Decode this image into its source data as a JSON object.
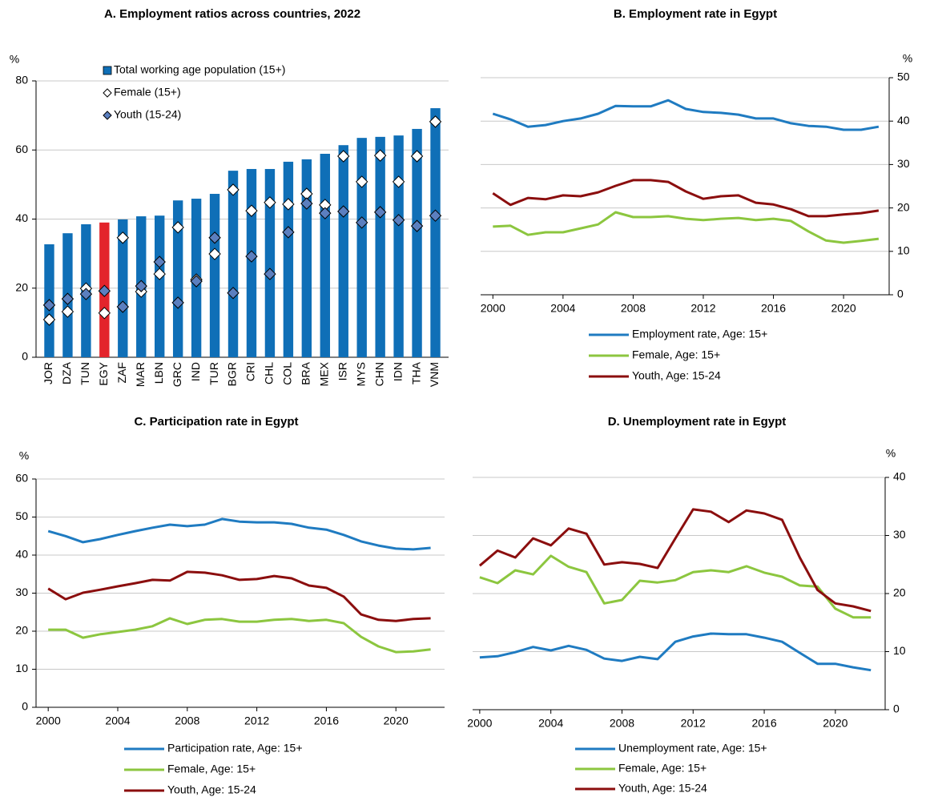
{
  "chart_data": [
    {
      "type": "bar",
      "title": "A. Employment ratios across countries, 2022",
      "y_unit": "%",
      "categories": [
        "JOR",
        "DZA",
        "TUN",
        "EGY",
        "ZAF",
        "MAR",
        "LBN",
        "GRC",
        "IND",
        "TUR",
        "BGR",
        "CRI",
        "CHL",
        "COL",
        "BRA",
        "MEX",
        "ISR",
        "MYS",
        "CHN",
        "IDN",
        "THA",
        "VNM"
      ],
      "series": [
        {
          "name": "Total working age population (15+)",
          "style": "bar",
          "color": "#0f6fb7",
          "colors": [
            "#0f6fb7",
            "#0f6fb7",
            "#0f6fb7",
            "#e3242b",
            "#0f6fb7",
            "#0f6fb7",
            "#0f6fb7",
            "#0f6fb7",
            "#0f6fb7",
            "#0f6fb7",
            "#0f6fb7",
            "#0f6fb7",
            "#0f6fb7",
            "#0f6fb7",
            "#0f6fb7",
            "#0f6fb7",
            "#0f6fb7",
            "#0f6fb7",
            "#0f6fb7",
            "#0f6fb7",
            "#0f6fb7",
            "#0f6fb7"
          ],
          "values": [
            32.7,
            35.9,
            38.5,
            39,
            39.9,
            40.8,
            41,
            45.4,
            45.9,
            47.3,
            54,
            54.5,
            54.5,
            56.6,
            57.3,
            58.9,
            61.4,
            63.5,
            63.8,
            64.2,
            66.1,
            72.1
          ]
        },
        {
          "name": "Female (15+)",
          "style": "diamond",
          "color": "#ffffff",
          "values": [
            10.9,
            13.2,
            19.9,
            12.8,
            34.6,
            19,
            24.1,
            37.6,
            22.5,
            29.9,
            48.5,
            42.4,
            44.8,
            44.3,
            47.3,
            44.1,
            58.2,
            50.8,
            58.4,
            50.8,
            58.2,
            68.2
          ]
        },
        {
          "name": "Youth (15-24)",
          "style": "diamond",
          "color": "#5b7fbf",
          "values": [
            15.1,
            16.9,
            18.3,
            19.2,
            14.6,
            20.6,
            27.6,
            15.8,
            22,
            34.6,
            18.6,
            29.2,
            24.1,
            36.2,
            44.5,
            41.7,
            42.2,
            39,
            42,
            39.7,
            38,
            41
          ]
        }
      ],
      "ylim": [
        0,
        80
      ],
      "yticks": [
        0,
        20,
        40,
        60,
        80
      ],
      "grid": true,
      "y_axis_side": "left",
      "legend_position": "top-left"
    },
    {
      "type": "line",
      "title": "B. Employment rate in Egypt",
      "y_unit": "%",
      "x": [
        2000,
        2001,
        2002,
        2003,
        2004,
        2005,
        2006,
        2007,
        2008,
        2009,
        2010,
        2011,
        2012,
        2013,
        2014,
        2015,
        2016,
        2017,
        2018,
        2019,
        2020,
        2021,
        2022
      ],
      "series": [
        {
          "name": "Employment rate, Age: 15+",
          "color": "#1f7bc1",
          "values": [
            41.7,
            40.4,
            38.7,
            39.1,
            40,
            40.6,
            41.7,
            43.5,
            43.4,
            43.4,
            44.8,
            42.8,
            42.1,
            41.9,
            41.5,
            40.6,
            40.6,
            39.5,
            38.9,
            38.7,
            38,
            38,
            38.7
          ]
        },
        {
          "name": "Female, Age: 15+",
          "color": "#8cc63f",
          "values": [
            15.7,
            15.9,
            13.8,
            14.4,
            14.4,
            15.3,
            16.2,
            19,
            17.9,
            17.9,
            18.1,
            17.5,
            17.2,
            17.5,
            17.7,
            17.2,
            17.5,
            17,
            14.6,
            12.5,
            12,
            12.4,
            12.9
          ]
        },
        {
          "name": "Youth, Age: 15-24",
          "color": "#8b0e0e",
          "values": [
            23.4,
            20.7,
            22.3,
            22,
            22.9,
            22.7,
            23.6,
            25.1,
            26.4,
            26.4,
            26,
            23.8,
            22.1,
            22.7,
            22.9,
            21.2,
            20.8,
            19.7,
            18.1,
            18.1,
            18.5,
            18.8,
            19.4
          ]
        }
      ],
      "xlim": [
        1999.3,
        2022.6
      ],
      "xticks": [
        2000,
        2004,
        2008,
        2012,
        2016,
        2020
      ],
      "ylim": [
        0,
        50
      ],
      "yticks": [
        0,
        10,
        20,
        30,
        40,
        50
      ],
      "grid": true,
      "y_axis_side": "right",
      "legend_position": "bottom"
    },
    {
      "type": "line",
      "title": "C. Participation rate in Egypt",
      "y_unit": "%",
      "x": [
        2000,
        2001,
        2002,
        2003,
        2004,
        2005,
        2006,
        2007,
        2008,
        2009,
        2010,
        2011,
        2012,
        2013,
        2014,
        2015,
        2016,
        2017,
        2018,
        2019,
        2020,
        2021,
        2022
      ],
      "series": [
        {
          "name": "Participation rate, Age: 15+",
          "color": "#1f7bc1",
          "values": [
            46.3,
            45,
            43.4,
            44.2,
            45.3,
            46.3,
            47.2,
            48,
            47.6,
            48,
            49.5,
            48.8,
            48.6,
            48.6,
            48.2,
            47.2,
            46.7,
            45.3,
            43.6,
            42.5,
            41.7,
            41.5,
            41.9
          ]
        },
        {
          "name": "Female, Age: 15+",
          "color": "#8cc63f",
          "values": [
            20.4,
            20.4,
            18.3,
            19.2,
            19.8,
            20.4,
            21.3,
            23.4,
            21.9,
            23,
            23.2,
            22.5,
            22.5,
            23,
            23.2,
            22.7,
            23,
            22.1,
            18.5,
            16,
            14.5,
            14.7,
            15.2
          ]
        },
        {
          "name": "Youth, Age: 15-24",
          "color": "#8b0e0e",
          "values": [
            31.2,
            28.4,
            30.1,
            30.9,
            31.8,
            32.6,
            33.5,
            33.3,
            35.6,
            35.4,
            34.7,
            33.5,
            33.7,
            34.5,
            33.9,
            32,
            31.4,
            29.1,
            24.4,
            23,
            22.7,
            23.2,
            23.4
          ]
        }
      ],
      "xlim": [
        1999.3,
        2022.8
      ],
      "xticks": [
        2000,
        2004,
        2008,
        2012,
        2016,
        2020
      ],
      "ylim": [
        0,
        60
      ],
      "yticks": [
        0,
        10,
        20,
        30,
        40,
        50,
        60
      ],
      "grid": true,
      "y_axis_side": "left",
      "legend_position": "bottom"
    },
    {
      "type": "line",
      "title": "D. Unemployment rate in Egypt",
      "y_unit": "%",
      "x": [
        2000,
        2001,
        2002,
        2003,
        2004,
        2005,
        2006,
        2007,
        2008,
        2009,
        2010,
        2011,
        2012,
        2013,
        2014,
        2015,
        2016,
        2017,
        2018,
        2019,
        2020,
        2021,
        2022
      ],
      "series": [
        {
          "name": "Unemployment rate, Age: 15+",
          "color": "#1f7bc1",
          "values": [
            9,
            9.2,
            9.9,
            10.8,
            10.2,
            11,
            10.3,
            8.8,
            8.4,
            9.1,
            8.7,
            11.7,
            12.6,
            13.1,
            13,
            13,
            12.4,
            11.7,
            9.8,
            7.9,
            7.9,
            7.3,
            6.8
          ]
        },
        {
          "name": "Female, Age: 15+",
          "color": "#8cc63f",
          "values": [
            22.8,
            21.8,
            24,
            23.3,
            26.5,
            24.6,
            23.7,
            18.3,
            18.9,
            22.2,
            21.9,
            22.3,
            23.7,
            24,
            23.7,
            24.7,
            23.6,
            22.9,
            21.4,
            21.2,
            17.4,
            15.9,
            15.9
          ]
        },
        {
          "name": "Youth, Age: 15-24",
          "color": "#8b0e0e",
          "values": [
            24.8,
            27.4,
            26.2,
            29.5,
            28.3,
            31.2,
            30.3,
            25,
            25.4,
            25.1,
            24.4,
            29.5,
            34.5,
            34.1,
            32.3,
            34.3,
            33.8,
            32.7,
            26.2,
            20.6,
            18.3,
            17.8,
            17
          ]
        }
      ],
      "xlim": [
        1999.6,
        2022.8
      ],
      "xticks": [
        2000,
        2004,
        2008,
        2012,
        2016,
        2020
      ],
      "ylim": [
        0,
        40
      ],
      "yticks": [
        0,
        10,
        20,
        30,
        40
      ],
      "grid": true,
      "y_axis_side": "right",
      "legend_position": "bottom"
    }
  ]
}
